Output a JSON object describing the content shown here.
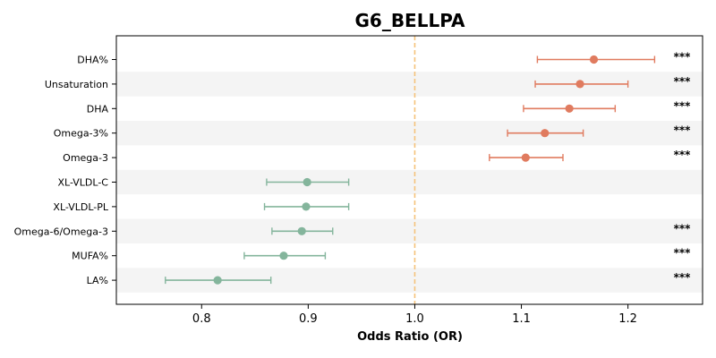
{
  "chart_data": {
    "type": "forest",
    "title": "G6_BELLPA",
    "xlabel": "Odds Ratio (OR)",
    "xlim": [
      0.72,
      1.27
    ],
    "xticks": [
      "0.8",
      "0.9",
      "1.0",
      "1.1",
      "1.2"
    ],
    "reference_line": 1.0,
    "colors": {
      "positive": "#e07b5f",
      "negative": "#84b59c",
      "reference": "#f5c27a",
      "band": "#f4f4f4"
    },
    "rows": [
      {
        "label": "DHA%",
        "or": 1.168,
        "lower": 1.115,
        "upper": 1.225,
        "sig": "***",
        "direction": "positive"
      },
      {
        "label": "Unsaturation",
        "or": 1.155,
        "lower": 1.113,
        "upper": 1.2,
        "sig": "***",
        "direction": "positive"
      },
      {
        "label": "DHA",
        "or": 1.145,
        "lower": 1.102,
        "upper": 1.188,
        "sig": "***",
        "direction": "positive"
      },
      {
        "label": "Omega-3%",
        "or": 1.122,
        "lower": 1.087,
        "upper": 1.158,
        "sig": "***",
        "direction": "positive"
      },
      {
        "label": "Omega-3",
        "or": 1.104,
        "lower": 1.07,
        "upper": 1.139,
        "sig": "***",
        "direction": "positive"
      },
      {
        "label": "XL-VLDL-C",
        "or": 0.899,
        "lower": 0.861,
        "upper": 0.938,
        "sig": "",
        "direction": "negative"
      },
      {
        "label": "XL-VLDL-PL",
        "or": 0.898,
        "lower": 0.859,
        "upper": 0.938,
        "sig": "",
        "direction": "negative"
      },
      {
        "label": "Omega-6/Omega-3",
        "or": 0.894,
        "lower": 0.866,
        "upper": 0.923,
        "sig": "***",
        "direction": "negative"
      },
      {
        "label": "MUFA%",
        "or": 0.877,
        "lower": 0.84,
        "upper": 0.916,
        "sig": "***",
        "direction": "negative"
      },
      {
        "label": "LA%",
        "or": 0.815,
        "lower": 0.766,
        "upper": 0.865,
        "sig": "***",
        "direction": "negative"
      }
    ]
  }
}
